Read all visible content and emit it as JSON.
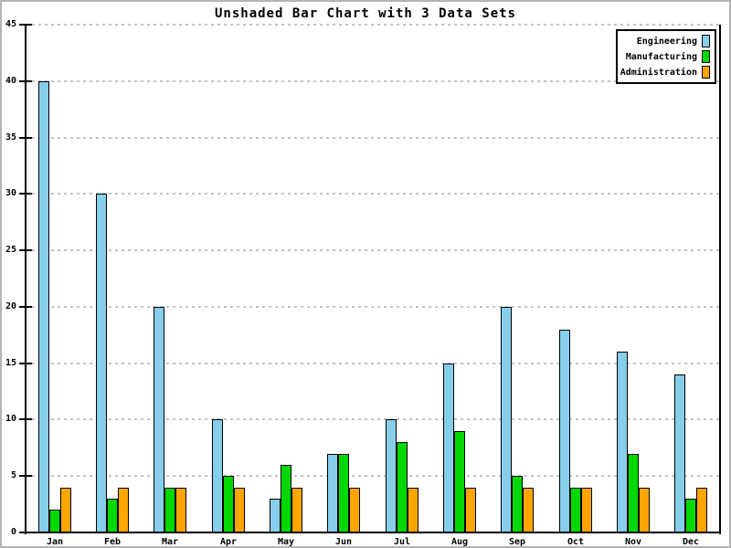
{
  "chart_data": {
    "type": "bar",
    "title": "Unshaded Bar Chart with 3 Data Sets",
    "categories": [
      "Jan",
      "Feb",
      "Mar",
      "Apr",
      "May",
      "Jun",
      "Jul",
      "Aug",
      "Sep",
      "Oct",
      "Nov",
      "Dec"
    ],
    "series": [
      {
        "name": "Engineering",
        "color": "#87CEEB",
        "values": [
          40,
          30,
          20,
          10,
          3,
          7,
          10,
          15,
          20,
          18,
          16,
          14
        ]
      },
      {
        "name": "Manufacturing",
        "color": "#00D800",
        "values": [
          2,
          3,
          4,
          5,
          6,
          7,
          8,
          9,
          5,
          4,
          7,
          3
        ]
      },
      {
        "name": "Administration",
        "color": "#FFA500",
        "values": [
          4,
          4,
          4,
          4,
          4,
          4,
          4,
          4,
          4,
          4,
          4,
          4
        ]
      }
    ],
    "xlabel": "",
    "ylabel": "",
    "ylim": [
      0,
      45
    ],
    "yticks": [
      0,
      5,
      10,
      15,
      20,
      25,
      30,
      35,
      40,
      45
    ],
    "grid": "horizontal dashed",
    "grid_color": "#c2c2c2",
    "axis_color": "#000000",
    "background": "#ffffff",
    "legend_position": "top-right"
  }
}
